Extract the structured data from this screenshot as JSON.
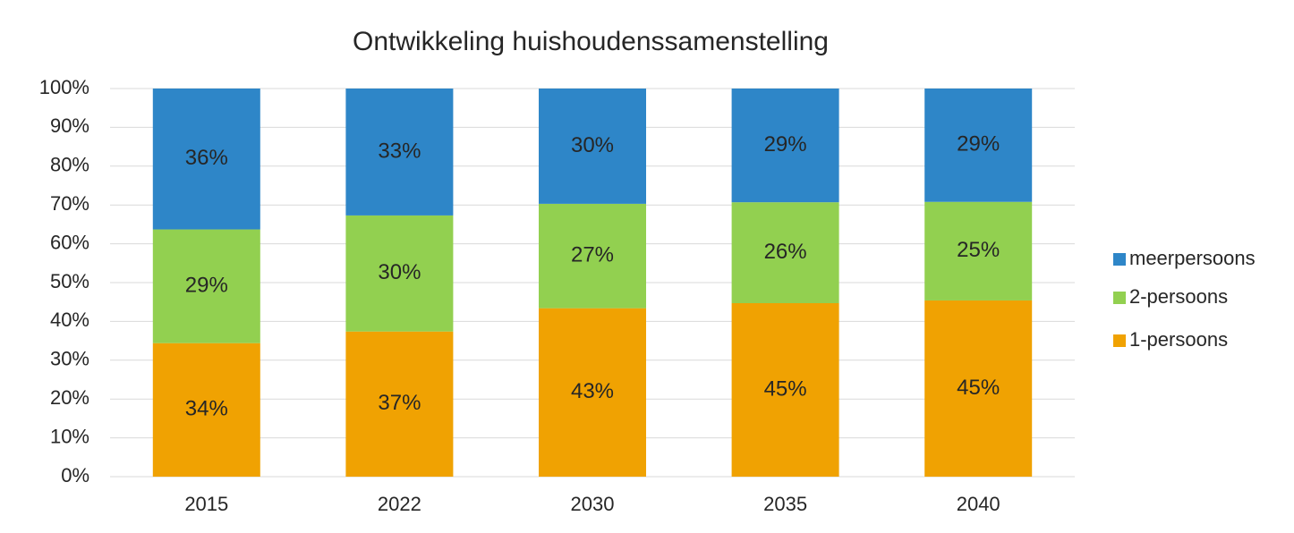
{
  "chart_data": {
    "type": "stacked_bar",
    "title": "Ontwikkeling huishoudenssamenstelling",
    "categories": [
      "2015",
      "2022",
      "2030",
      "2035",
      "2040"
    ],
    "series": [
      {
        "name": "1-persoons",
        "color": "#f0a202",
        "values": [
          34.4,
          37.4,
          43.4,
          44.7,
          45.4
        ],
        "value_labels": [
          "34%",
          "37%",
          "43%",
          "45%",
          "45%"
        ]
      },
      {
        "name": "2-persoons",
        "color": "#92d050",
        "values": [
          29.3,
          29.9,
          26.9,
          26.0,
          25.4
        ],
        "value_labels": [
          "29%",
          "30%",
          "27%",
          "26%",
          "25%"
        ]
      },
      {
        "name": "meerpersoons",
        "color": "#2e86c8",
        "values": [
          36.3,
          32.7,
          29.7,
          29.3,
          29.2
        ],
        "value_labels": [
          "36%",
          "33%",
          "30%",
          "29%",
          "29%"
        ]
      }
    ],
    "ylim": [
      0,
      100
    ],
    "yticks": [
      {
        "value": 0,
        "label": "0%"
      },
      {
        "value": 10,
        "label": "10%"
      },
      {
        "value": 20,
        "label": "20%"
      },
      {
        "value": 30,
        "label": "30%"
      },
      {
        "value": 40,
        "label": "40%"
      },
      {
        "value": 50,
        "label": "50%"
      },
      {
        "value": 60,
        "label": "60%"
      },
      {
        "value": 70,
        "label": "70%"
      },
      {
        "value": 80,
        "label": "80%"
      },
      {
        "value": 90,
        "label": "90%"
      },
      {
        "value": 100,
        "label": "100%"
      }
    ],
    "grid": true,
    "legend": "right"
  }
}
